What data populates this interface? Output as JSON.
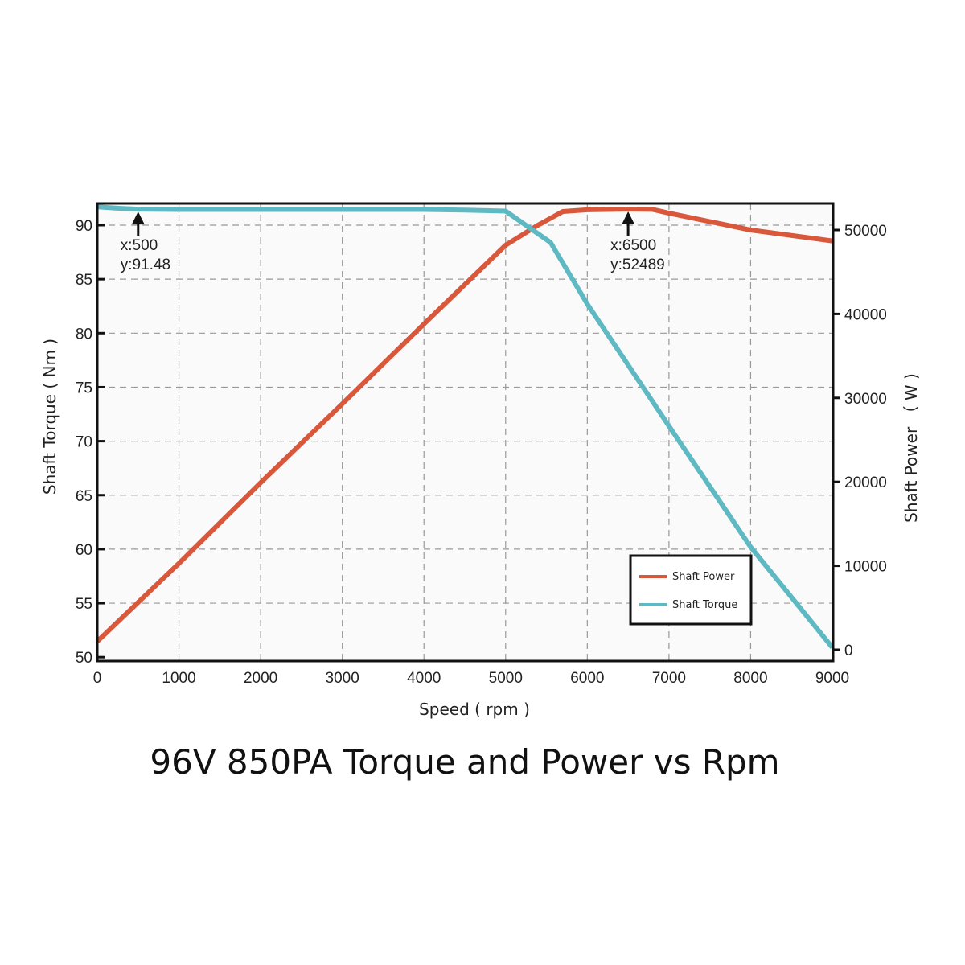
{
  "chart_data": {
    "type": "line",
    "title": "96V 850PA Torque and Power vs Rpm",
    "xlabel": "Speed ( rpm )",
    "ylabel_left": "Shaft Torque ( Nm )",
    "ylabel_right": "Shaft Power （ W )",
    "xlim": [
      0,
      9000
    ],
    "ylim_left": [
      50,
      92
    ],
    "ylim_right": [
      0,
      53000
    ],
    "x_ticks": [
      0,
      1000,
      2000,
      3000,
      4000,
      5000,
      6000,
      7000,
      8000,
      9000
    ],
    "y_ticks_left": [
      50,
      55,
      60,
      65,
      70,
      75,
      80,
      85,
      90
    ],
    "y_ticks_right": [
      0,
      10000,
      20000,
      30000,
      40000,
      50000
    ],
    "grid": true,
    "legend_position": "bottom-right",
    "series": [
      {
        "name": "Shaft Power",
        "axis": "right",
        "color": "#d9573a",
        "x": [
          0,
          1000,
          2000,
          3000,
          4000,
          5000,
          5400,
          5700,
          6000,
          6500,
          6800,
          7000,
          8000,
          9000
        ],
        "y": [
          1000,
          10300,
          19900,
          29300,
          38800,
          48200,
          50600,
          52200,
          52400,
          52489,
          52450,
          52000,
          50000,
          48700
        ]
      },
      {
        "name": "Shaft Torque",
        "axis": "left",
        "color": "#5fb9c2",
        "x": [
          0,
          300,
          500,
          1000,
          2000,
          3000,
          4000,
          4500,
          5000,
          5550,
          6000,
          7000,
          8000,
          9000
        ],
        "y": [
          91.7,
          91.55,
          91.48,
          91.45,
          91.45,
          91.45,
          91.45,
          91.4,
          91.3,
          88.4,
          82.7,
          71.4,
          60.2,
          50.9
        ]
      }
    ],
    "annotations": [
      {
        "series": "Shaft Torque",
        "x": 500,
        "y": 91.48,
        "text_x": "x:500",
        "text_y": "y:91.48"
      },
      {
        "series": "Shaft Power",
        "x": 6500,
        "y": 52489,
        "text_x": "x:6500",
        "text_y": "y:52489"
      }
    ]
  }
}
